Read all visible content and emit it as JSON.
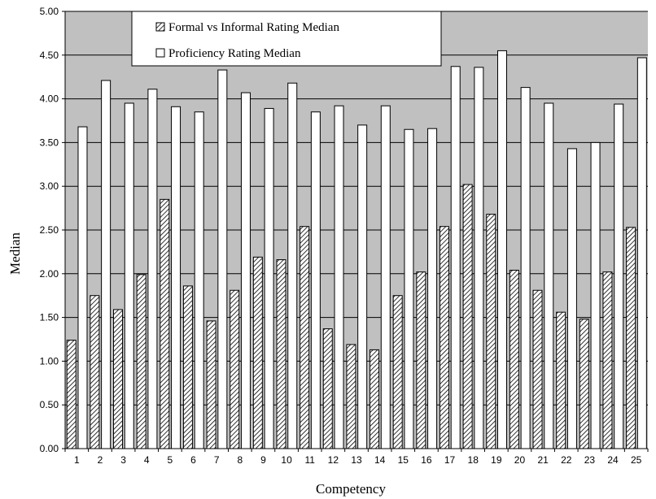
{
  "chart_data": {
    "type": "bar",
    "title": "",
    "xlabel": "Competency",
    "ylabel": "Median",
    "ylim": [
      0,
      5
    ],
    "y_tick_step": 0.5,
    "y_tick_labels": [
      "0.00",
      "0.50",
      "1.00",
      "1.50",
      "2.00",
      "2.50",
      "3.00",
      "3.50",
      "4.00",
      "4.50",
      "5.00"
    ],
    "grid": "horizontal",
    "legend_position": "top-left",
    "plot_background": "#c0c0c0",
    "categories": [
      "1",
      "2",
      "3",
      "4",
      "5",
      "6",
      "7",
      "8",
      "9",
      "10",
      "11",
      "12",
      "13",
      "14",
      "15",
      "16",
      "17",
      "18",
      "19",
      "20",
      "21",
      "22",
      "23",
      "24",
      "25"
    ],
    "series": [
      {
        "name": "Formal vs Informal Rating Median",
        "pattern": "diagonal-hatch",
        "values": [
          1.24,
          1.75,
          1.59,
          1.99,
          2.85,
          1.86,
          1.46,
          1.81,
          2.19,
          2.16,
          2.54,
          1.37,
          1.19,
          1.13,
          1.75,
          2.02,
          2.54,
          3.02,
          2.68,
          2.04,
          1.81,
          1.56,
          1.48,
          2.02,
          2.53
        ]
      },
      {
        "name": "Proficiency Rating Median",
        "pattern": "solid-white",
        "values": [
          3.68,
          4.21,
          3.95,
          4.11,
          3.91,
          3.85,
          4.33,
          4.07,
          3.89,
          4.18,
          3.85,
          3.92,
          3.7,
          3.92,
          3.65,
          3.66,
          4.37,
          4.36,
          4.55,
          4.13,
          3.95,
          3.43,
          3.5,
          3.94,
          4.47
        ]
      }
    ]
  }
}
